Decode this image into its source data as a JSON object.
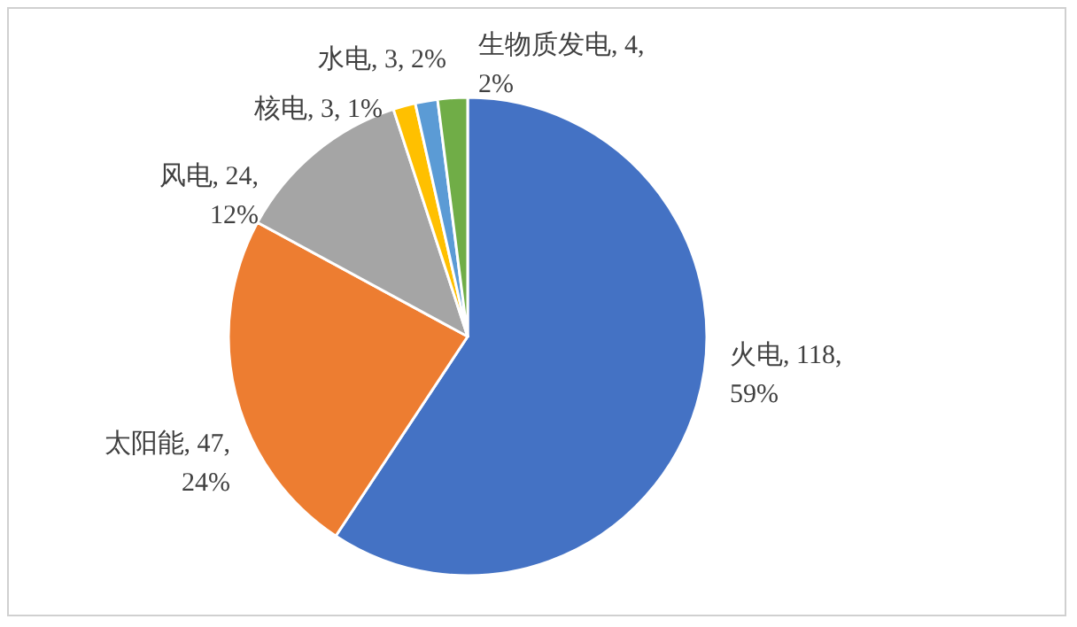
{
  "chart_data": {
    "type": "pie",
    "categories": [
      "火电",
      "太阳能",
      "风电",
      "核电",
      "水电",
      "生物质发电"
    ],
    "values": [
      118,
      47,
      24,
      3,
      3,
      4
    ],
    "colors": [
      "#4472c4",
      "#ed7d31",
      "#a5a5a5",
      "#ffc000",
      "#5b9bd5",
      "#70ad47"
    ],
    "value_labels": [
      "118, 59%",
      "47, 24%",
      "24, 12%",
      "3, 1%",
      "3, 2%",
      "4, 2%"
    ],
    "legend": false
  }
}
